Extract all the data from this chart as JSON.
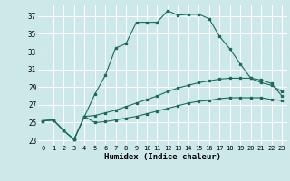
{
  "xlabel": "Humidex (Indice chaleur)",
  "bg_color": "#cce8e8",
  "grid_color": "#b0d8d8",
  "line_color": "#1a6b5a",
  "xlim": [
    -0.5,
    23.5
  ],
  "ylim": [
    22.5,
    38.2
  ],
  "yticks": [
    23,
    25,
    27,
    29,
    31,
    33,
    35,
    37
  ],
  "xticks": [
    0,
    1,
    2,
    3,
    4,
    5,
    6,
    7,
    8,
    9,
    10,
    11,
    12,
    13,
    14,
    15,
    16,
    17,
    18,
    19,
    20,
    21,
    22,
    23
  ],
  "s1_x": [
    0,
    1,
    2,
    3,
    4,
    5,
    6,
    7,
    8,
    9,
    10,
    11,
    12,
    13,
    14,
    15,
    16,
    17,
    18,
    19,
    20,
    21,
    22,
    23
  ],
  "s1_y": [
    25.2,
    25.3,
    24.1,
    23.1,
    25.7,
    28.2,
    30.3,
    33.4,
    33.9,
    36.3,
    36.3,
    36.3,
    37.6,
    37.1,
    37.2,
    37.2,
    36.7,
    34.7,
    33.3,
    31.6,
    30.0,
    29.5,
    29.2,
    28.5
  ],
  "s2_x": [
    0,
    1,
    2,
    3,
    4,
    5,
    6,
    7,
    8,
    9,
    10,
    11,
    12,
    13,
    14,
    15,
    16,
    17,
    18,
    19,
    20,
    21,
    22,
    23
  ],
  "s2_y": [
    25.2,
    25.3,
    24.1,
    23.1,
    25.7,
    25.8,
    26.1,
    26.4,
    26.8,
    27.2,
    27.6,
    28.0,
    28.5,
    28.9,
    29.2,
    29.5,
    29.7,
    29.9,
    30.0,
    30.0,
    30.0,
    29.8,
    29.4,
    28.0
  ],
  "s3_x": [
    0,
    1,
    2,
    3,
    4,
    5,
    6,
    7,
    8,
    9,
    10,
    11,
    12,
    13,
    14,
    15,
    16,
    17,
    18,
    19,
    20,
    21,
    22,
    23
  ],
  "s3_y": [
    25.2,
    25.3,
    24.1,
    23.1,
    25.7,
    25.0,
    25.1,
    25.3,
    25.5,
    25.7,
    26.0,
    26.3,
    26.6,
    26.9,
    27.2,
    27.4,
    27.5,
    27.7,
    27.8,
    27.8,
    27.8,
    27.8,
    27.6,
    27.5
  ]
}
